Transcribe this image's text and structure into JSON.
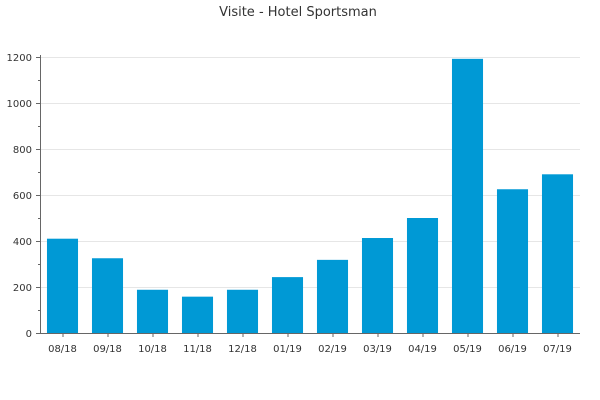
{
  "chart_data": {
    "type": "bar",
    "title": "Visite - Hotel Sportsman",
    "xlabel": "",
    "ylabel": "",
    "categories": [
      "08/18",
      "09/18",
      "10/18",
      "11/18",
      "12/18",
      "01/19",
      "02/19",
      "03/19",
      "04/19",
      "05/19",
      "06/19",
      "07/19"
    ],
    "values": [
      410,
      325,
      188,
      158,
      188,
      243,
      318,
      413,
      500,
      1192,
      625,
      690
    ],
    "ylim": [
      0,
      1200
    ],
    "yticks": [
      0,
      200,
      400,
      600,
      800,
      1000,
      1200
    ],
    "grid": true,
    "legend": "none",
    "bar_color": "#0099d5"
  }
}
